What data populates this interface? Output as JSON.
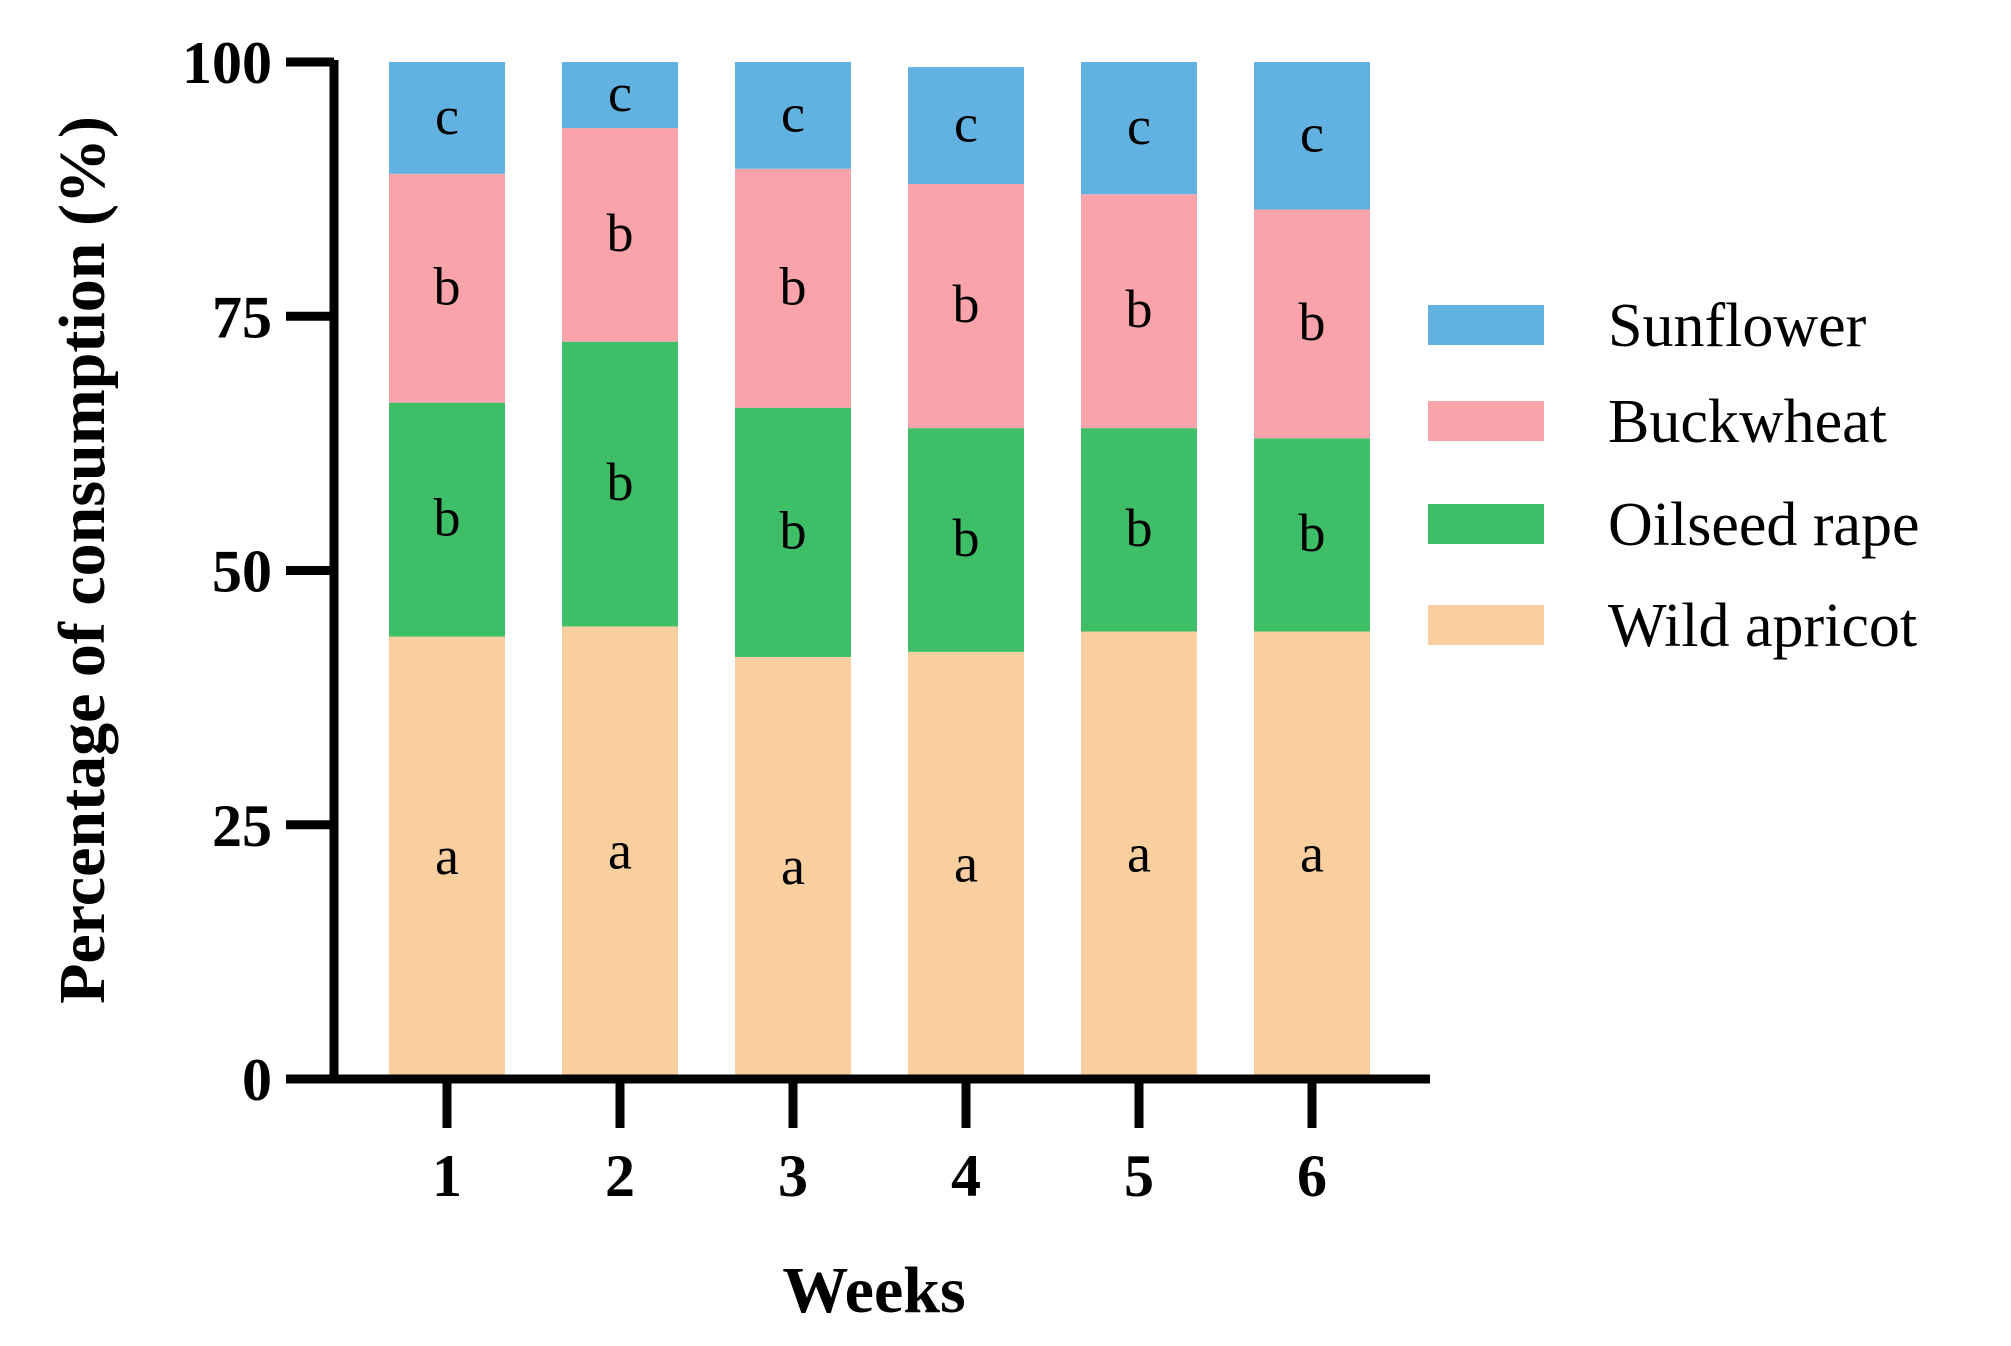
{
  "chart_data": {
    "type": "bar",
    "stacked": true,
    "title": "",
    "xlabel": "Weeks",
    "ylabel": "Percentage of consumption (%)",
    "ylim": [
      0,
      100
    ],
    "yticks": [
      0,
      25,
      50,
      75,
      100
    ],
    "categories": [
      "1",
      "2",
      "3",
      "4",
      "5",
      "6"
    ],
    "legend_position": "right",
    "series": [
      {
        "name": "Wild apricot",
        "color": "#F9CFA0",
        "values": [
          43.5,
          44.5,
          41.5,
          42.0,
          44.0,
          44.0
        ],
        "labels": [
          "a",
          "a",
          "a",
          "a",
          "a",
          "a"
        ]
      },
      {
        "name": "Oilseed rape",
        "color": "#3EBE66",
        "values": [
          23.0,
          28.0,
          24.5,
          22.0,
          20.0,
          19.0
        ],
        "labels": [
          "b",
          "b",
          "b",
          "b",
          "b",
          "b"
        ]
      },
      {
        "name": "Buckwheat",
        "color": "#FBA3AA",
        "values": [
          22.5,
          21.0,
          23.5,
          24.0,
          23.0,
          22.5
        ],
        "labels": [
          "b",
          "b",
          "b",
          "b",
          "b",
          "b"
        ]
      },
      {
        "name": "Sunflower",
        "color": "#62B2E1",
        "values": [
          11.0,
          6.5,
          10.5,
          11.5,
          13.0,
          14.5
        ],
        "labels": [
          "c",
          "c",
          "c",
          "c",
          "c",
          "c"
        ]
      }
    ],
    "legend_order": [
      "Sunflower",
      "Buckwheat",
      "Oilseed rape",
      "Wild apricot"
    ]
  }
}
